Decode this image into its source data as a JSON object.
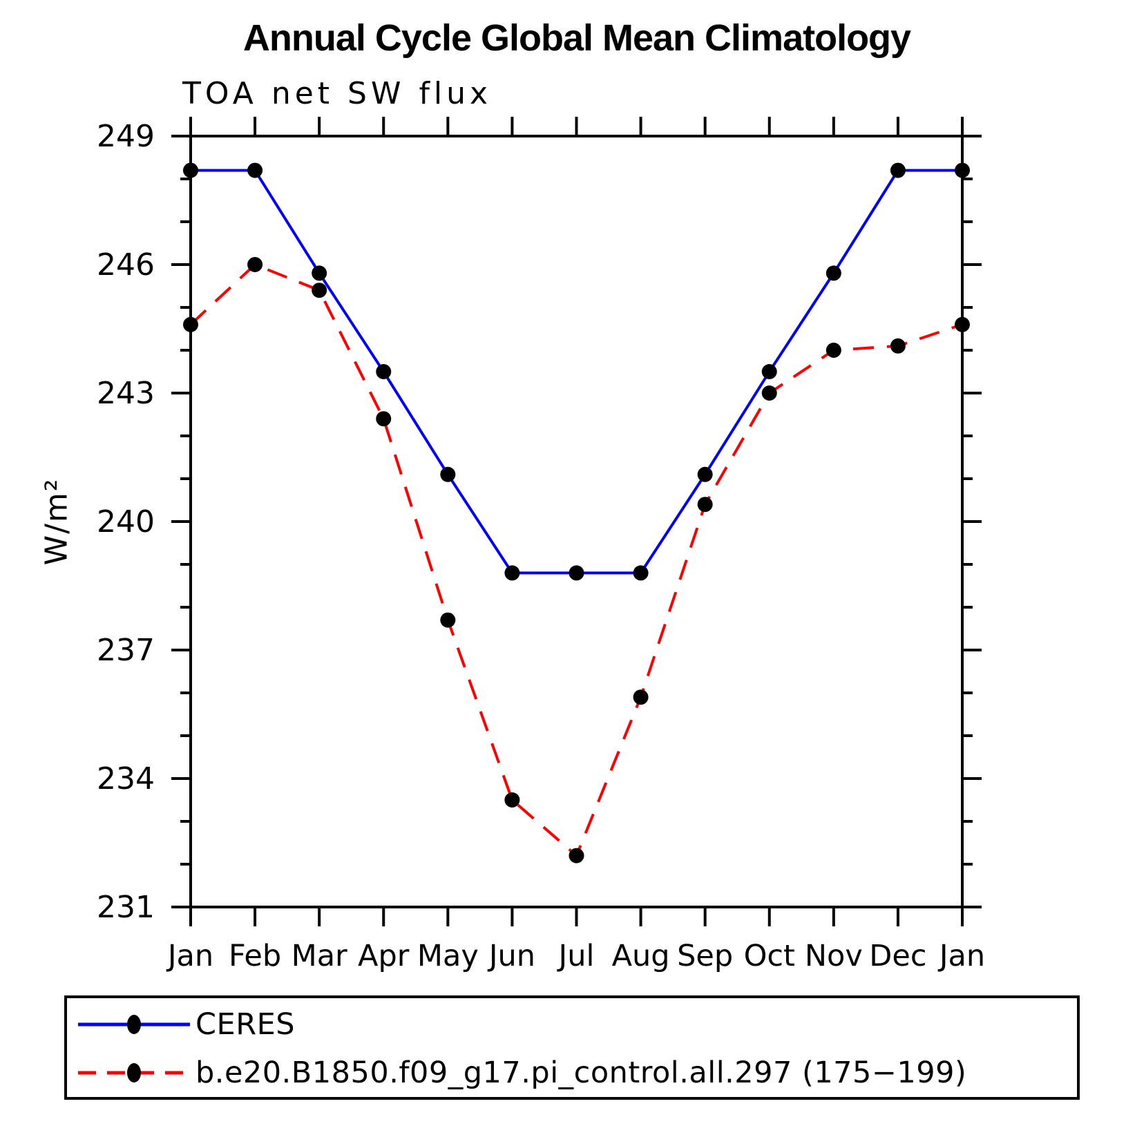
{
  "chart_data": {
    "type": "line",
    "title": "Annual Cycle Global Mean Climatology",
    "subtitle": "TOA net SW flux",
    "ylabel": "W/m²",
    "xlabel": "",
    "ylim": [
      231,
      249
    ],
    "ytick_major_step": 3,
    "ytick_minor_step": 1,
    "grid": false,
    "legend_position": "bottom",
    "x_labels": [
      "Jan",
      "Feb",
      "Mar",
      "Apr",
      "May",
      "Jun",
      "Jul",
      "Aug",
      "Sep",
      "Oct",
      "Nov",
      "Dec",
      "Jan"
    ],
    "series": [
      {
        "name": "CERES",
        "color": "#0000ff",
        "line_style": "solid",
        "marker": "filled-circle",
        "marker_color": "#000000",
        "values": [
          248.2,
          248.2,
          245.8,
          243.5,
          241.1,
          238.8,
          238.8,
          238.8,
          241.1,
          243.5,
          245.8,
          248.2,
          248.2
        ]
      },
      {
        "name": "b.e20.B1850.f09_g17.pi_control.all.297 (175−199)",
        "color": "#ff0000",
        "line_style": "dashed",
        "marker": "filled-circle",
        "marker_color": "#000000",
        "values": [
          244.6,
          246.0,
          245.4,
          242.4,
          237.7,
          233.5,
          232.2,
          235.9,
          240.4,
          243.0,
          244.0,
          244.1,
          244.6
        ]
      }
    ],
    "axis_color": "#000000"
  }
}
